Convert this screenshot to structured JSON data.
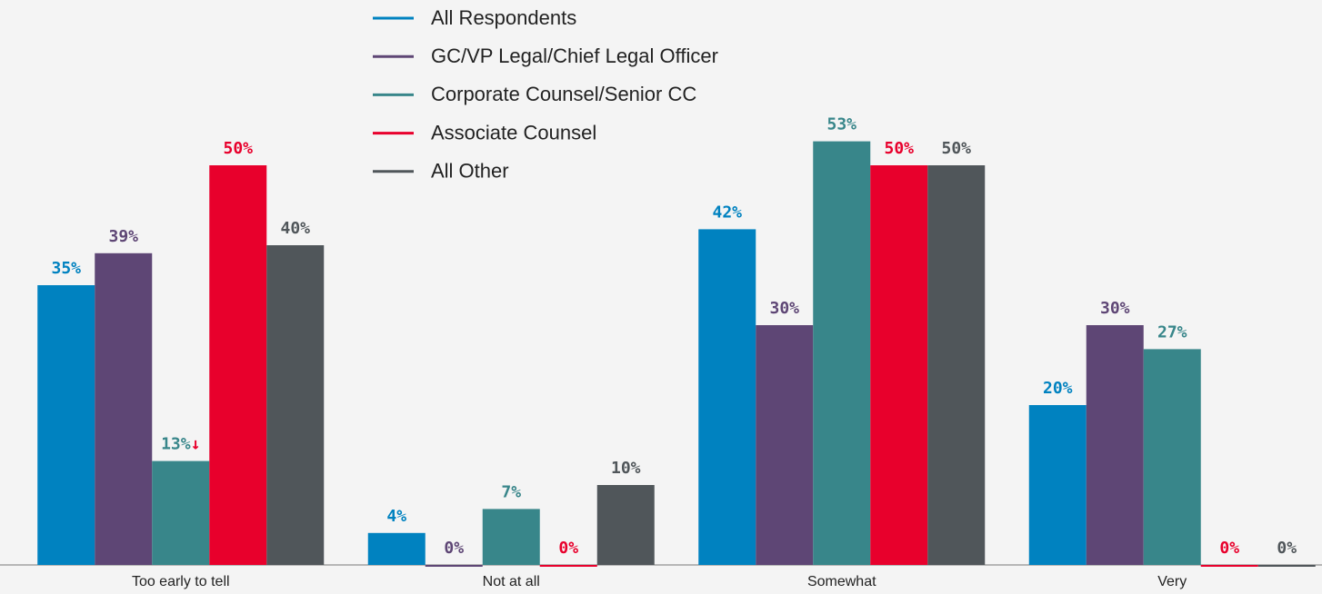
{
  "chart_data": {
    "type": "bar",
    "categories": [
      "Too early to tell",
      "Not at all",
      "Somewhat",
      "Very"
    ],
    "series": [
      {
        "name": "All Respondents",
        "color": "#0082c0",
        "values": [
          35,
          4,
          42,
          20
        ],
        "value_labels": [
          "35%",
          "4%",
          "42%",
          "20%"
        ]
      },
      {
        "name": "GC/VP Legal/Chief Legal Officer",
        "color": "#5e4675",
        "values": [
          39,
          0,
          30,
          30
        ],
        "value_labels": [
          "39%",
          "0%",
          "30%",
          "30%"
        ]
      },
      {
        "name": "Corporate Counsel/Senior CC",
        "color": "#38868a",
        "values": [
          13,
          7,
          53,
          27
        ],
        "value_labels": [
          "13%",
          "7%",
          "53%",
          "27%"
        ]
      },
      {
        "name": "Associate Counsel",
        "color": "#e8002c",
        "values": [
          50,
          0,
          50,
          0
        ],
        "value_labels": [
          "50%",
          "0%",
          "50%",
          "0%"
        ]
      },
      {
        "name": "All Other",
        "color": "#50565a",
        "values": [
          40,
          10,
          50,
          0
        ],
        "value_labels": [
          "40%",
          "10%",
          "50%",
          "0%"
        ]
      }
    ],
    "annotations": [
      {
        "text": "↓",
        "series": 2,
        "index": 0,
        "color": "#e8002c"
      }
    ],
    "legend": "top"
  }
}
